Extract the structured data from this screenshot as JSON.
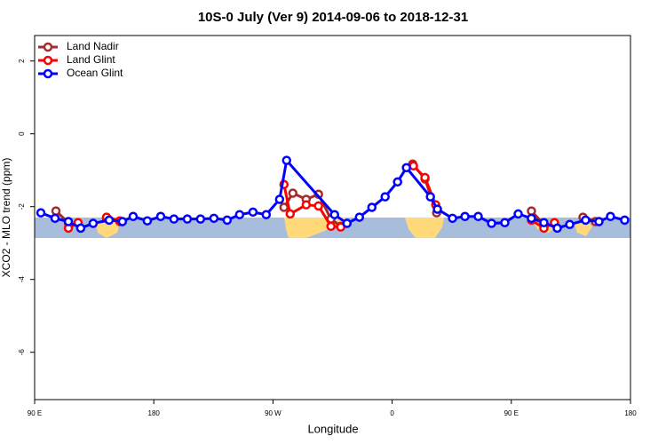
{
  "chart_data": {
    "type": "line",
    "title": "10S-0 July (Ver 9)   2014-09-06 to 2018-12-31",
    "xlabel": "Longitude",
    "ylabel": "XCO2 - MLO trend (ppm)",
    "xlim": [
      90,
      540
    ],
    "ylim": [
      -7.3,
      2.7
    ],
    "xticks": [
      {
        "value": 90,
        "label": "90 E"
      },
      180,
      {
        "value": 270,
        "label": "90 W"
      },
      {
        "value": 360,
        "label": "0"
      },
      {
        "value": 450,
        "label": "90 E"
      },
      {
        "value": 540,
        "label": "180"
      }
    ],
    "yticks": [
      2,
      0,
      -2,
      -4,
      -6
    ],
    "legend": "top-left",
    "series": [
      {
        "name": "Land Nadir",
        "color": "#a52a2a",
        "x": [
          106.1,
          115.5,
          null,
          144.3,
          154.3,
          null,
          278.3,
          285.0,
          295.1,
          304.4,
          313.8,
          321.2,
          null,
          375.5,
          384.8,
          393.6,
          null,
          465.2,
          474.6,
          null,
          504.1,
          513.5
        ],
        "values": [
          -2.12,
          -2.44,
          null,
          -2.32,
          -2.41,
          null,
          -2.02,
          -1.63,
          -1.8,
          -1.66,
          -2.34,
          -2.54,
          null,
          -0.83,
          -1.24,
          -2.17,
          null,
          -2.12,
          -2.49,
          null,
          -2.29,
          -2.41
        ]
      },
      {
        "name": "Land Glint",
        "color": "#ff0000",
        "x": [
          115.5,
          122.8,
          null,
          144.3,
          154.3,
          null,
          278.3,
          283.0,
          295.1,
          304.4,
          313.8,
          321.2,
          null,
          376.1,
          384.8,
          392.9,
          null,
          465.2,
          474.6,
          482.6
        ],
        "values": [
          -2.59,
          -2.44,
          null,
          -2.29,
          -2.39,
          null,
          -1.39,
          -2.2,
          -1.95,
          -1.98,
          -2.54,
          -2.56,
          null,
          -0.88,
          -1.2,
          -1.95,
          null,
          -2.37,
          -2.59,
          -2.44
        ]
      },
      {
        "name": "Ocean Glint",
        "color": "#0000ff",
        "x": [
          94.7,
          105.4,
          115.5,
          124.8,
          134.2,
          146.3,
          156.3,
          164.4,
          175.1,
          185.2,
          195.2,
          205.3,
          215.3,
          225.4,
          235.4,
          244.8,
          254.9,
          264.9,
          275.0,
          280.3,
          316.5,
          325.9,
          335.3,
          344.7,
          354.7,
          364.1,
          370.8,
          388.9,
          394.2,
          405.6,
          415.0,
          425.0,
          435.1,
          445.1,
          455.2,
          465.2,
          474.6,
          484.7,
          494.1,
          506.1,
          516.2,
          524.9,
          535.6
        ],
        "values": [
          -2.17,
          -2.32,
          -2.41,
          -2.59,
          -2.46,
          -2.37,
          -2.41,
          -2.27,
          -2.39,
          -2.27,
          -2.34,
          -2.34,
          -2.34,
          -2.32,
          -2.37,
          -2.22,
          -2.15,
          -2.22,
          -1.8,
          -0.73,
          -2.22,
          -2.46,
          -2.29,
          -2.02,
          -1.73,
          -1.32,
          -0.93,
          -1.73,
          -2.07,
          -2.32,
          -2.27,
          -2.27,
          -2.46,
          -2.44,
          -2.2,
          -2.32,
          -2.44,
          -2.59,
          -2.49,
          -2.37,
          -2.41,
          -2.27,
          -2.37
        ]
      }
    ]
  }
}
